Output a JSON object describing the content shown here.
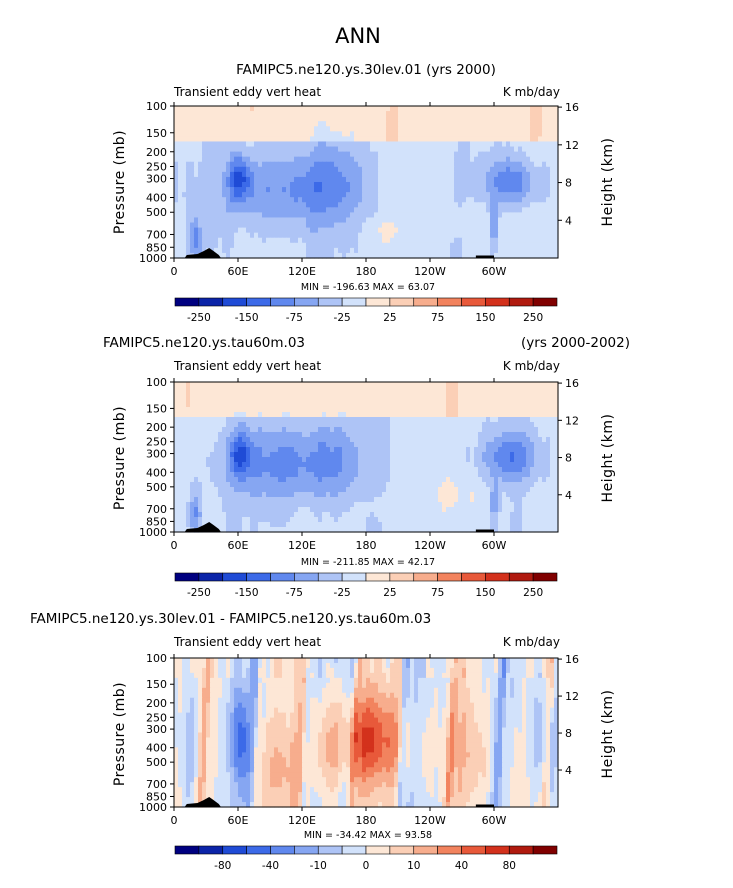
{
  "page_title": "ANN",
  "chart_data": [
    {
      "type": "contour",
      "title": "FAMIPC5.ne120.ys.30lev.01 (yrs 2000)",
      "title_right": "",
      "left_string": "Transient eddy vert heat",
      "right_string": "K mb/day",
      "ylabel": "Pressure (mb)",
      "ylabel_right": "Height (km)",
      "y_ticks": [
        "100",
        "150",
        "200",
        "250",
        "300",
        "400",
        "500",
        "700",
        "850",
        "1000"
      ],
      "y_values": [
        100,
        150,
        200,
        250,
        300,
        400,
        500,
        700,
        850,
        1000
      ],
      "yr_ticks": [
        "16",
        "12",
        "8",
        "4"
      ],
      "yr_values": [
        16,
        12,
        8,
        4
      ],
      "x_ticks": [
        "0",
        "60E",
        "120E",
        "180",
        "120W",
        "60W"
      ],
      "x_values": [
        0,
        60,
        120,
        180,
        240,
        300
      ],
      "xlim": [
        0,
        360
      ],
      "ylim": [
        1000,
        100
      ],
      "min_max": "MIN = -196.63   MAX =  63.07",
      "min": -196.63,
      "max": 63.07,
      "colorbar_labels": [
        "-250",
        "-150",
        "-75",
        "-25",
        "25",
        "75",
        "150",
        "250"
      ],
      "colorbar_levels": [
        -250,
        -200,
        -150,
        -100,
        -75,
        -50,
        -25,
        -10,
        0,
        10,
        25,
        50,
        75,
        100,
        150,
        200,
        250
      ]
    },
    {
      "type": "contour",
      "title": "FAMIPC5.ne120.ys.tau60m.03",
      "title_right": "(yrs 2000-2002)",
      "left_string": "Transient eddy vert heat",
      "right_string": "K mb/day",
      "ylabel": "Pressure (mb)",
      "ylabel_right": "Height (km)",
      "y_ticks": [
        "100",
        "150",
        "200",
        "250",
        "300",
        "400",
        "500",
        "700",
        "850",
        "1000"
      ],
      "y_values": [
        100,
        150,
        200,
        250,
        300,
        400,
        500,
        700,
        850,
        1000
      ],
      "yr_ticks": [
        "16",
        "12",
        "8",
        "4"
      ],
      "yr_values": [
        16,
        12,
        8,
        4
      ],
      "x_ticks": [
        "0",
        "60E",
        "120E",
        "180",
        "120W",
        "60W"
      ],
      "x_values": [
        0,
        60,
        120,
        180,
        240,
        300
      ],
      "xlim": [
        0,
        360
      ],
      "ylim": [
        1000,
        100
      ],
      "min_max": "MIN = -211.85   MAX =  42.17",
      "min": -211.85,
      "max": 42.17,
      "colorbar_labels": [
        "-250",
        "-150",
        "-75",
        "-25",
        "25",
        "75",
        "150",
        "250"
      ],
      "colorbar_levels": [
        -250,
        -200,
        -150,
        -100,
        -75,
        -50,
        -25,
        -10,
        0,
        10,
        25,
        50,
        75,
        100,
        150,
        200,
        250
      ]
    },
    {
      "type": "contour",
      "title": "FAMIPC5.ne120.ys.30lev.01 - FAMIPC5.ne120.ys.tau60m.03",
      "title_right": "",
      "left_string": "Transient eddy vert heat",
      "right_string": "K mb/day",
      "ylabel": "Pressure (mb)",
      "ylabel_right": "Height (km)",
      "y_ticks": [
        "100",
        "150",
        "200",
        "250",
        "300",
        "400",
        "500",
        "700",
        "850",
        "1000"
      ],
      "y_values": [
        100,
        150,
        200,
        250,
        300,
        400,
        500,
        700,
        850,
        1000
      ],
      "yr_ticks": [
        "16",
        "12",
        "8",
        "4"
      ],
      "yr_values": [
        16,
        12,
        8,
        4
      ],
      "x_ticks": [
        "0",
        "60E",
        "120E",
        "180",
        "120W",
        "60W"
      ],
      "x_values": [
        0,
        60,
        120,
        180,
        240,
        300
      ],
      "xlim": [
        0,
        360
      ],
      "ylim": [
        1000,
        100
      ],
      "min_max": "MIN = -34.42   MAX =  93.58",
      "min": -34.42,
      "max": 93.58,
      "colorbar_labels": [
        "-80",
        "-40",
        "-10",
        "0",
        "10",
        "40",
        "80"
      ],
      "colorbar_levels": [
        -100,
        -80,
        -60,
        -40,
        -20,
        -10,
        -5,
        -2,
        0,
        2,
        5,
        10,
        20,
        40,
        60,
        80,
        100
      ]
    }
  ],
  "colors": {
    "bar": [
      "#000080",
      "#0b24a8",
      "#1f4bd6",
      "#3c6ae8",
      "#6088ee",
      "#86a6f2",
      "#aec4f6",
      "#d2e2fb",
      "#fde7d6",
      "#fbcfb6",
      "#f7ad8d",
      "#f2835e",
      "#e8593a",
      "#d3311c",
      "#b01a0f",
      "#800000"
    ]
  }
}
